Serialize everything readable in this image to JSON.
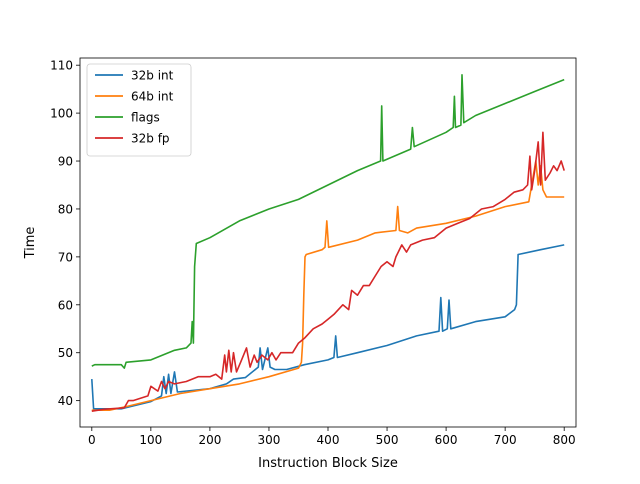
{
  "chart_data": {
    "type": "line",
    "title": "",
    "xlabel": "Instruction Block Size",
    "ylabel": "Time",
    "xlim": [
      -20,
      820
    ],
    "ylim": [
      34.5,
      111.5
    ],
    "x_ticks": [
      0,
      100,
      200,
      300,
      400,
      500,
      600,
      700,
      800
    ],
    "y_ticks": [
      40,
      50,
      60,
      70,
      80,
      90,
      100,
      110
    ],
    "grid": false,
    "legend_position": "upper-left",
    "series": [
      {
        "name": "32b int",
        "color": "#1f77b4",
        "points": [
          [
            0,
            44.5
          ],
          [
            3,
            38.3
          ],
          [
            50,
            38.3
          ],
          [
            100,
            39.8
          ],
          [
            118,
            41
          ],
          [
            122,
            45
          ],
          [
            126,
            41.5
          ],
          [
            130,
            45.5
          ],
          [
            134,
            41.5
          ],
          [
            140,
            46
          ],
          [
            145,
            41.8
          ],
          [
            200,
            42.5
          ],
          [
            228,
            43.5
          ],
          [
            240,
            44.5
          ],
          [
            260,
            44.8
          ],
          [
            282,
            47
          ],
          [
            285,
            51
          ],
          [
            289,
            46.5
          ],
          [
            298,
            51
          ],
          [
            302,
            47
          ],
          [
            310,
            46.5
          ],
          [
            330,
            46.5
          ],
          [
            360,
            47.5
          ],
          [
            400,
            48.5
          ],
          [
            410,
            49
          ],
          [
            413,
            53.5
          ],
          [
            416,
            49
          ],
          [
            450,
            50
          ],
          [
            500,
            51.5
          ],
          [
            550,
            53.5
          ],
          [
            588,
            54.5
          ],
          [
            591,
            61.5
          ],
          [
            594,
            54.5
          ],
          [
            602,
            55
          ],
          [
            605,
            61
          ],
          [
            608,
            55
          ],
          [
            650,
            56.5
          ],
          [
            700,
            57.5
          ],
          [
            716,
            59
          ],
          [
            719,
            60
          ],
          [
            722,
            70.5
          ],
          [
            760,
            71.5
          ],
          [
            800,
            72.5
          ]
        ]
      },
      {
        "name": "64b int",
        "color": "#ff7f0e",
        "points": [
          [
            0,
            38
          ],
          [
            30,
            38
          ],
          [
            60,
            38.8
          ],
          [
            100,
            40
          ],
          [
            150,
            41.5
          ],
          [
            200,
            42.5
          ],
          [
            250,
            43.5
          ],
          [
            300,
            45
          ],
          [
            350,
            46.8
          ],
          [
            355,
            48
          ],
          [
            357,
            52
          ],
          [
            359,
            62
          ],
          [
            361,
            70
          ],
          [
            363,
            70.5
          ],
          [
            390,
            71.5
          ],
          [
            395,
            72
          ],
          [
            398,
            77.5
          ],
          [
            401,
            72
          ],
          [
            450,
            73.5
          ],
          [
            480,
            75
          ],
          [
            515,
            75.5
          ],
          [
            518,
            80.5
          ],
          [
            521,
            75.5
          ],
          [
            535,
            75
          ],
          [
            550,
            76
          ],
          [
            600,
            77
          ],
          [
            650,
            78.5
          ],
          [
            700,
            80.5
          ],
          [
            740,
            81.5
          ],
          [
            752,
            90
          ],
          [
            756,
            85
          ],
          [
            760,
            89
          ],
          [
            764,
            84
          ],
          [
            770,
            82.5
          ],
          [
            800,
            82.5
          ]
        ]
      },
      {
        "name": "flags",
        "color": "#2ca02c",
        "points": [
          [
            0,
            47.2
          ],
          [
            5,
            47.5
          ],
          [
            50,
            47.5
          ],
          [
            55,
            46.8
          ],
          [
            58,
            48
          ],
          [
            100,
            48.5
          ],
          [
            140,
            50.5
          ],
          [
            160,
            51
          ],
          [
            168,
            52
          ],
          [
            170,
            56.5
          ],
          [
            172,
            52
          ],
          [
            174,
            68
          ],
          [
            177,
            72.8
          ],
          [
            200,
            74
          ],
          [
            250,
            77.5
          ],
          [
            300,
            80
          ],
          [
            350,
            82
          ],
          [
            400,
            85
          ],
          [
            450,
            88
          ],
          [
            489,
            90
          ],
          [
            491,
            101.5
          ],
          [
            493,
            90
          ],
          [
            540,
            92.5
          ],
          [
            543,
            97
          ],
          [
            546,
            93
          ],
          [
            600,
            96
          ],
          [
            612,
            97
          ],
          [
            614,
            103.5
          ],
          [
            616,
            97
          ],
          [
            625,
            97.5
          ],
          [
            627,
            108
          ],
          [
            630,
            98
          ],
          [
            650,
            99.5
          ],
          [
            700,
            102
          ],
          [
            750,
            104.5
          ],
          [
            800,
            107
          ]
        ]
      },
      {
        "name": "32b fp",
        "color": "#d62728",
        "points": [
          [
            0,
            37.8
          ],
          [
            20,
            38.2
          ],
          [
            55,
            38.5
          ],
          [
            62,
            40
          ],
          [
            70,
            40
          ],
          [
            95,
            41
          ],
          [
            100,
            43
          ],
          [
            112,
            42
          ],
          [
            118,
            44
          ],
          [
            124,
            42.5
          ],
          [
            130,
            44
          ],
          [
            140,
            43.5
          ],
          [
            160,
            44
          ],
          [
            180,
            45
          ],
          [
            200,
            45
          ],
          [
            210,
            45.5
          ],
          [
            220,
            44.5
          ],
          [
            225,
            49.5
          ],
          [
            228,
            46
          ],
          [
            232,
            50.5
          ],
          [
            236,
            46
          ],
          [
            240,
            50
          ],
          [
            245,
            46
          ],
          [
            252,
            48
          ],
          [
            262,
            51
          ],
          [
            268,
            47
          ],
          [
            275,
            49.5
          ],
          [
            280,
            48
          ],
          [
            288,
            49.5
          ],
          [
            298,
            48.5
          ],
          [
            305,
            50
          ],
          [
            312,
            48.5
          ],
          [
            320,
            50
          ],
          [
            340,
            50
          ],
          [
            350,
            52
          ],
          [
            360,
            53
          ],
          [
            375,
            55
          ],
          [
            390,
            56
          ],
          [
            400,
            57
          ],
          [
            410,
            58
          ],
          [
            425,
            60
          ],
          [
            435,
            59
          ],
          [
            440,
            63
          ],
          [
            450,
            62
          ],
          [
            460,
            64
          ],
          [
            470,
            64
          ],
          [
            480,
            66
          ],
          [
            490,
            68
          ],
          [
            500,
            69
          ],
          [
            510,
            68
          ],
          [
            515,
            70
          ],
          [
            525,
            72.5
          ],
          [
            533,
            71
          ],
          [
            540,
            72.5
          ],
          [
            560,
            73.5
          ],
          [
            580,
            74
          ],
          [
            600,
            76
          ],
          [
            620,
            77
          ],
          [
            640,
            78
          ],
          [
            660,
            80
          ],
          [
            680,
            80.5
          ],
          [
            700,
            82
          ],
          [
            715,
            83.5
          ],
          [
            730,
            84
          ],
          [
            738,
            85
          ],
          [
            742,
            91
          ],
          [
            745,
            84
          ],
          [
            750,
            88
          ],
          [
            756,
            94
          ],
          [
            760,
            85
          ],
          [
            764,
            96
          ],
          [
            768,
            86
          ],
          [
            776,
            87.5
          ],
          [
            782,
            89
          ],
          [
            788,
            88
          ],
          [
            795,
            90
          ],
          [
            800,
            88
          ]
        ]
      }
    ]
  }
}
